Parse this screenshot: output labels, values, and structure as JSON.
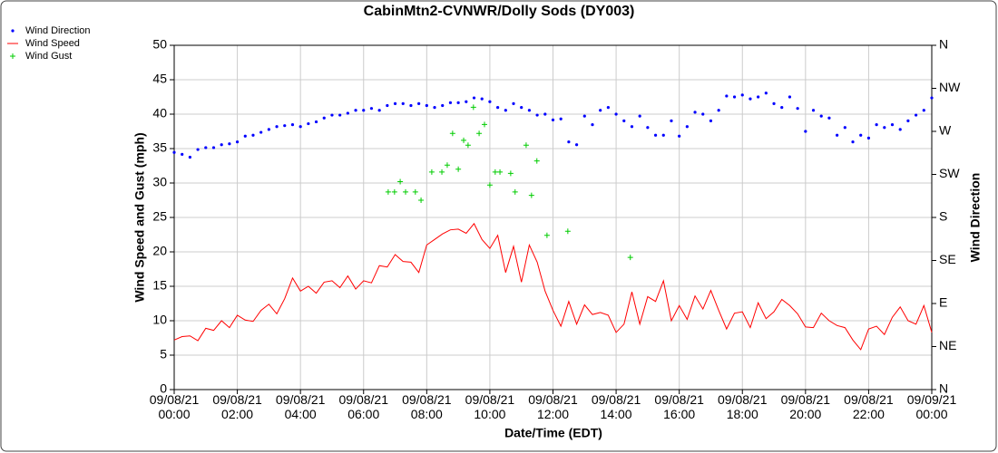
{
  "chart_data": {
    "type": "line",
    "title": "CabinMtn2-CVNWR/Dolly Sods (DY003)",
    "x_label": "Date/Time (EDT)",
    "y_label": "Wind Speed and Gust (mph)",
    "y2_label": "Wind Direction",
    "xlim": [
      0,
      24
    ],
    "xticks": [
      {
        "value": 0,
        "label": "09/08/21\n00:00"
      },
      {
        "value": 2,
        "label": "09/08/21\n02:00"
      },
      {
        "value": 4,
        "label": "09/08/21\n04:00"
      },
      {
        "value": 6,
        "label": "09/08/21\n06:00"
      },
      {
        "value": 8,
        "label": "09/08/21\n08:00"
      },
      {
        "value": 10,
        "label": "09/08/21\n10:00"
      },
      {
        "value": 12,
        "label": "09/08/21\n12:00"
      },
      {
        "value": 14,
        "label": "09/08/21\n14:00"
      },
      {
        "value": 16,
        "label": "09/08/21\n16:00"
      },
      {
        "value": 18,
        "label": "09/08/21\n18:00"
      },
      {
        "value": 20,
        "label": "09/08/21\n20:00"
      },
      {
        "value": 22,
        "label": "09/08/21\n22:00"
      },
      {
        "value": 24,
        "label": "09/09/21\n00:00"
      }
    ],
    "ylim": [
      0,
      50
    ],
    "yticks": [
      0,
      5,
      10,
      15,
      20,
      25,
      30,
      35,
      40,
      45,
      50
    ],
    "y2lim": [
      0,
      360
    ],
    "y2ticks": [
      {
        "value": 0,
        "label": "N"
      },
      {
        "value": 45,
        "label": "NE"
      },
      {
        "value": 90,
        "label": "E"
      },
      {
        "value": 135,
        "label": "SE"
      },
      {
        "value": 180,
        "label": "S"
      },
      {
        "value": 225,
        "label": "SW"
      },
      {
        "value": 270,
        "label": "W"
      },
      {
        "value": 315,
        "label": "NW"
      },
      {
        "value": 360,
        "label": "N"
      }
    ],
    "grid": true,
    "legend": "top-left",
    "x": [
      0,
      0.25,
      0.5,
      0.75,
      1,
      1.25,
      1.5,
      1.75,
      2,
      2.25,
      2.5,
      2.75,
      3,
      3.25,
      3.5,
      3.75,
      4,
      4.25,
      4.5,
      4.75,
      5,
      5.25,
      5.5,
      5.75,
      6,
      6.25,
      6.5,
      6.75,
      7,
      7.25,
      7.5,
      7.75,
      8,
      8.25,
      8.5,
      8.75,
      9,
      9.25,
      9.5,
      9.75,
      10,
      10.25,
      10.5,
      10.75,
      11,
      11.25,
      11.5,
      11.75,
      12,
      12.25,
      12.5,
      12.75,
      13,
      13.25,
      13.5,
      13.75,
      14,
      14.25,
      14.5,
      14.75,
      15,
      15.25,
      15.5,
      15.75,
      16,
      16.25,
      16.5,
      16.75,
      17,
      17.25,
      17.5,
      17.75,
      18,
      18.25,
      18.5,
      18.75,
      19,
      19.25,
      19.5,
      19.75,
      20,
      20.25,
      20.5,
      20.75,
      21,
      21.25,
      21.5,
      21.75,
      22,
      22.25,
      22.5,
      22.75,
      23,
      23.25,
      23.5,
      23.75,
      24
    ],
    "series": [
      {
        "name": "Wind Direction",
        "color": "#0000ff",
        "marker": "dot",
        "axis": "y2",
        "values": [
          248,
          246,
          243,
          251,
          253,
          253,
          256,
          257,
          259,
          265,
          266,
          269,
          272,
          275,
          276,
          277,
          275,
          278,
          280,
          284,
          287,
          287,
          289,
          292,
          292,
          294,
          292,
          297,
          299,
          299,
          297,
          299,
          297,
          295,
          297,
          300,
          300,
          301,
          305,
          304,
          301,
          295,
          292,
          299,
          295,
          292,
          287,
          288,
          282,
          283,
          259,
          256,
          286,
          277,
          292,
          295,
          288,
          281,
          275,
          286,
          274,
          266,
          266,
          281,
          265,
          275,
          290,
          288,
          281,
          292,
          307,
          306,
          308,
          304,
          306,
          310,
          299,
          295,
          306,
          294,
          270,
          292,
          286,
          284,
          266,
          274,
          259,
          266,
          263,
          277,
          274,
          277,
          272,
          281,
          287,
          292,
          305
        ]
      },
      {
        "name": "Wind Speed",
        "color": "#ff0000",
        "marker": "line",
        "values": [
          7.2,
          7.7,
          7.8,
          7.1,
          8.9,
          8.6,
          10.0,
          9.0,
          10.8,
          10.1,
          9.9,
          11.5,
          12.4,
          11.0,
          13.2,
          16.2,
          14.3,
          15.0,
          14.0,
          15.6,
          15.8,
          14.8,
          16.5,
          14.6,
          15.8,
          15.5,
          18.0,
          17.8,
          19.6,
          18.6,
          18.5,
          17.0,
          21.0,
          21.8,
          22.6,
          23.2,
          23.3,
          22.7,
          24.1,
          21.8,
          20.5,
          22.4,
          17.0,
          20.8,
          15.6,
          21.0,
          18.5,
          14.3,
          11.5,
          9.2,
          12.8,
          9.5,
          12.3,
          10.9,
          11.2,
          10.8,
          8.3,
          9.5,
          14.2,
          9.5,
          13.5,
          12.8,
          15.8,
          10.0,
          12.2,
          10.2,
          13.6,
          11.7,
          14.4,
          11.5,
          8.8,
          11.1,
          11.3,
          9.0,
          12.6,
          10.3,
          11.3,
          13.1,
          12.2,
          11.0,
          9.1,
          9.0,
          11.1,
          10.0,
          9.3,
          9.0,
          7.2,
          5.8,
          8.8,
          9.2,
          8.0,
          10.5,
          12.0,
          10.0,
          9.5,
          12.2,
          8.3
        ]
      },
      {
        "name": "Wind Gust",
        "color": "#00cc00",
        "marker": "plus",
        "x": [
          6.78,
          6.98,
          7.16,
          7.33,
          7.64,
          7.82,
          8.16,
          8.48,
          8.65,
          8.82,
          9.0,
          9.17,
          9.31,
          9.48,
          9.66,
          9.83,
          10.0,
          10.17,
          10.32,
          10.66,
          10.8,
          11.15,
          11.32,
          11.49,
          11.81,
          12.47,
          14.45
        ],
        "values": [
          28.7,
          28.7,
          30.2,
          28.7,
          28.7,
          27.5,
          31.6,
          31.6,
          32.6,
          37.2,
          32.0,
          36.2,
          35.5,
          41.0,
          37.2,
          38.5,
          29.7,
          31.6,
          31.6,
          31.4,
          28.7,
          35.5,
          28.2,
          33.2,
          22.4,
          23.0,
          19.2
        ]
      }
    ]
  }
}
